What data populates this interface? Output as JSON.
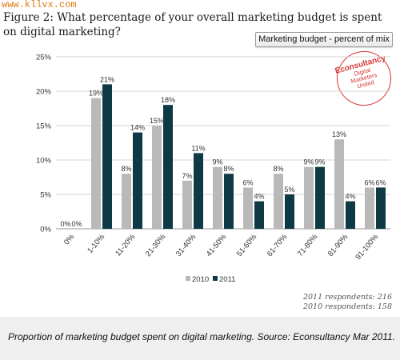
{
  "watermark": "www.kllvx.com",
  "figure": {
    "label": "Figure 2:",
    "question": "What percentage of your overall marketing budget is spent on digital marketing?"
  },
  "mix_button": "Marketing budget - percent of mix",
  "stamp": {
    "line1": "Econsultancy",
    "line2": "Digital",
    "line3": "Marketers",
    "line4": "United"
  },
  "respondents": {
    "r2011": "2011 respondents: 216",
    "r2010": "2010 respondents: 158"
  },
  "caption": "Proportion of marketing budget spent on digital marketing. Source: Econsultancy Mar 2011.",
  "colors": {
    "series2010": "#b9b9b9",
    "series2011": "#0e3a46",
    "grid": "#d6d6d6",
    "axis_text": "#333333"
  },
  "chart_data": {
    "type": "bar",
    "categories": [
      "0%",
      "1-10%",
      "11-20%",
      "21-30%",
      "31-40%",
      "41-50%",
      "51-60%",
      "61-70%",
      "71-80%",
      "81-90%",
      "91-100%"
    ],
    "series": [
      {
        "name": "2010",
        "values": [
          0,
          19,
          8,
          15,
          7,
          9,
          6,
          8,
          9,
          13,
          6
        ],
        "labels": [
          "0%",
          "19%",
          "8%",
          "15%",
          "7%",
          "9%",
          "6%",
          "8%",
          "9%",
          "13%",
          "6%"
        ]
      },
      {
        "name": "2011",
        "values": [
          0,
          21,
          14,
          18,
          11,
          8,
          4,
          5,
          9,
          4,
          6
        ],
        "labels": [
          "0%",
          "21%",
          "14%",
          "18%",
          "11%",
          "8%",
          "4%",
          "5%",
          "9%",
          "4%",
          "6%"
        ]
      }
    ],
    "yticks": [
      "0%",
      "5%",
      "10%",
      "15%",
      "20%",
      "25%"
    ],
    "ylim": [
      0,
      25
    ],
    "grid": true,
    "legend": "bottom-center"
  }
}
